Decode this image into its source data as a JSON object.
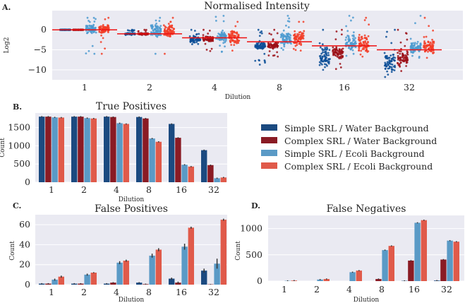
{
  "colors": {
    "bars": [
      "#1b4a80",
      "#8a1b24",
      "#5a9ac6",
      "#e05a4a"
    ],
    "points": [
      "#0b4d96",
      "#9c1117",
      "#4b9ad0",
      "#f23d27"
    ],
    "reference_line": "#ee1111",
    "axes_bg": "#eaeaf2",
    "grid": "#ffffff"
  },
  "legend": {
    "placement": "right-middle",
    "entries": [
      "Simple SRL / Water Background",
      "Complex SRL / Water Background",
      "Simple SRL / Ecoli Background",
      "Complex SRL / Ecoli Background"
    ]
  },
  "chart_data": [
    {
      "panel": "A.",
      "type": "scatter",
      "title": "Normalised Intensity",
      "xlabel": "Dilution",
      "ylabel": "Log2",
      "categories": [
        "1",
        "2",
        "4",
        "8",
        "16",
        "32"
      ],
      "yticks": [
        0,
        -5,
        -10
      ],
      "ylim": [
        -12.5,
        4.8
      ],
      "grid": true,
      "expected_log2": [
        0,
        -1,
        -2,
        -3,
        -4,
        -5
      ],
      "series": [
        {
          "name": "Simple SRL / Water Background",
          "bulk": [
            [
              0,
              0
            ],
            [
              -1.2,
              -0.8
            ],
            [
              -3.2,
              -1.6
            ],
            [
              -5,
              -3
            ],
            [
              -9.5,
              -4
            ],
            [
              -11,
              -5
            ]
          ],
          "range": [
            [
              0,
              0
            ],
            [
              -1.3,
              0
            ],
            [
              -3.6,
              0
            ],
            [
              -8.7,
              0
            ],
            [
              -10,
              0
            ],
            [
              -11.8,
              0
            ]
          ]
        },
        {
          "name": "Complex SRL / Water Background",
          "bulk": [
            [
              0,
              0
            ],
            [
              -1.2,
              -0.8
            ],
            [
              -3.2,
              -1.6
            ],
            [
              -5,
              -3
            ],
            [
              -7.5,
              -4
            ],
            [
              -9.5,
              -5
            ]
          ],
          "range": [
            [
              0,
              0
            ],
            [
              -1.3,
              0
            ],
            [
              -5.3,
              0
            ],
            [
              -6.7,
              0
            ],
            [
              -9.8,
              0
            ],
            [
              -10.3,
              0
            ]
          ]
        },
        {
          "name": "Simple SRL / Ecoli Background",
          "bulk": [
            [
              -1,
              1.5
            ],
            [
              -2,
              1.5
            ],
            [
              -3.5,
              0
            ],
            [
              -4,
              0
            ],
            [
              -5.5,
              -1
            ],
            [
              -6,
              -3
            ]
          ],
          "range": [
            [
              -6,
              3
            ],
            [
              -6,
              3
            ],
            [
              -5.5,
              3.5
            ],
            [
              -5,
              3.5
            ],
            [
              -6.5,
              3.5
            ],
            [
              -7,
              3.5
            ]
          ]
        },
        {
          "name": "Complex SRL / Ecoli Background",
          "bulk": [
            [
              -1,
              1.5
            ],
            [
              -2,
              1.5
            ],
            [
              -3.5,
              0
            ],
            [
              -4.5,
              0
            ],
            [
              -6,
              -1
            ],
            [
              -6.5,
              -2
            ]
          ],
          "range": [
            [
              -6,
              3
            ],
            [
              -6,
              3
            ],
            [
              -5.2,
              2
            ],
            [
              -5.2,
              2
            ],
            [
              -6.7,
              3
            ],
            [
              -7,
              3
            ]
          ]
        }
      ]
    },
    {
      "panel": "B.",
      "type": "bar",
      "title": "True Positives",
      "xlabel": "Dilution",
      "ylabel": "Count",
      "categories": [
        "1",
        "2",
        "4",
        "8",
        "16",
        "32"
      ],
      "yticks": [
        0,
        500,
        1000,
        1500
      ],
      "ylim": [
        0,
        1900
      ],
      "grid": true,
      "series": [
        {
          "name": "Simple SRL / Water Background",
          "values": [
            1800,
            1800,
            1800,
            1790,
            1600,
            880
          ]
        },
        {
          "name": "Complex SRL / Water Background",
          "values": [
            1800,
            1800,
            1790,
            1750,
            1220,
            470
          ]
        },
        {
          "name": "Simple SRL / Ecoli Background",
          "values": [
            1780,
            1760,
            1620,
            1200,
            480,
            110
          ]
        },
        {
          "name": "Complex SRL / Ecoli Background",
          "values": [
            1775,
            1750,
            1600,
            1110,
            430,
            130
          ]
        }
      ]
    },
    {
      "panel": "C.",
      "type": "bar",
      "title": "False Positives",
      "xlabel": "Dilution",
      "ylabel": "Count",
      "categories": [
        "1",
        "2",
        "4",
        "8",
        "16",
        "32"
      ],
      "yticks": [
        0,
        20,
        40,
        60
      ],
      "ylim": [
        0,
        70
      ],
      "grid": true,
      "series": [
        {
          "name": "Simple SRL / Water Background",
          "values": [
            1,
            1,
            1,
            2,
            6,
            14
          ]
        },
        {
          "name": "Complex SRL / Water Background",
          "values": [
            1,
            1,
            2,
            0.5,
            2,
            0.3
          ]
        },
        {
          "name": "Simple SRL / Ecoli Background",
          "values": [
            5,
            10,
            22,
            29,
            38,
            21
          ]
        },
        {
          "name": "Complex SRL / Ecoli Background",
          "values": [
            8,
            12,
            24,
            35,
            57,
            65
          ]
        }
      ],
      "errors": [
        [
          0.5,
          0.5,
          0.5,
          0.5,
          1,
          2
        ],
        [
          0.5,
          0.5,
          0.5,
          0.5,
          1,
          0.3
        ],
        [
          1,
          1,
          1.5,
          2,
          3,
          5
        ],
        [
          1,
          0.5,
          1,
          1.5,
          1,
          1
        ]
      ]
    },
    {
      "panel": "D.",
      "type": "bar",
      "title": "False Negatives",
      "xlabel": "Dilution",
      "ylabel": "Count",
      "categories": [
        "1",
        "2",
        "4",
        "8",
        "16",
        "32"
      ],
      "yticks": [
        0,
        500,
        1000
      ],
      "ylim": [
        0,
        1250
      ],
      "grid": true,
      "series": [
        {
          "name": "Simple SRL / Water Background",
          "values": [
            0,
            0,
            0,
            0,
            5,
            10
          ]
        },
        {
          "name": "Complex SRL / Water Background",
          "values": [
            0,
            0,
            0,
            40,
            390,
            410
          ]
        },
        {
          "name": "Simple SRL / Ecoli Background",
          "values": [
            5,
            30,
            170,
            590,
            1110,
            770
          ]
        },
        {
          "name": "Complex SRL / Ecoli Background",
          "values": [
            10,
            40,
            200,
            670,
            1160,
            750
          ]
        }
      ]
    }
  ]
}
